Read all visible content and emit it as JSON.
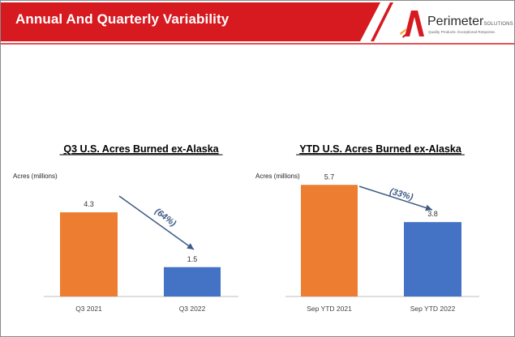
{
  "slide": {
    "title": "Annual And Quarterly Variability",
    "brand_color": "#d71920",
    "logo": {
      "name": "Perimeter",
      "suffix": "SOLUTIONS",
      "tagline": "Quality Products. Exceptional Response."
    }
  },
  "chart_data": [
    {
      "type": "bar",
      "title": "Q3 U.S. Acres Burned ex-Alaska",
      "ylabel": "Acres (millions)",
      "categories": [
        "Q3 2021",
        "Q3 2022"
      ],
      "values": [
        4.3,
        1.5
      ],
      "value_labels": [
        "4.3",
        "1.5"
      ],
      "colors": [
        "#ed7d31",
        "#4472c4"
      ],
      "ylim": [
        0,
        6.5
      ],
      "grid": false,
      "annotation": {
        "text": "(64%)",
        "type": "arrow"
      }
    },
    {
      "type": "bar",
      "title": "YTD U.S. Acres Burned ex-Alaska",
      "ylabel": "Acres (millions)",
      "categories": [
        "Sep YTD 2021",
        "Sep YTD 2022"
      ],
      "values": [
        5.7,
        3.8
      ],
      "value_labels": [
        "5.7",
        "3.8"
      ],
      "colors": [
        "#ed7d31",
        "#4472c4"
      ],
      "ylim": [
        0,
        6.5
      ],
      "grid": false,
      "annotation": {
        "text": "(33%)",
        "type": "arrow"
      }
    }
  ]
}
